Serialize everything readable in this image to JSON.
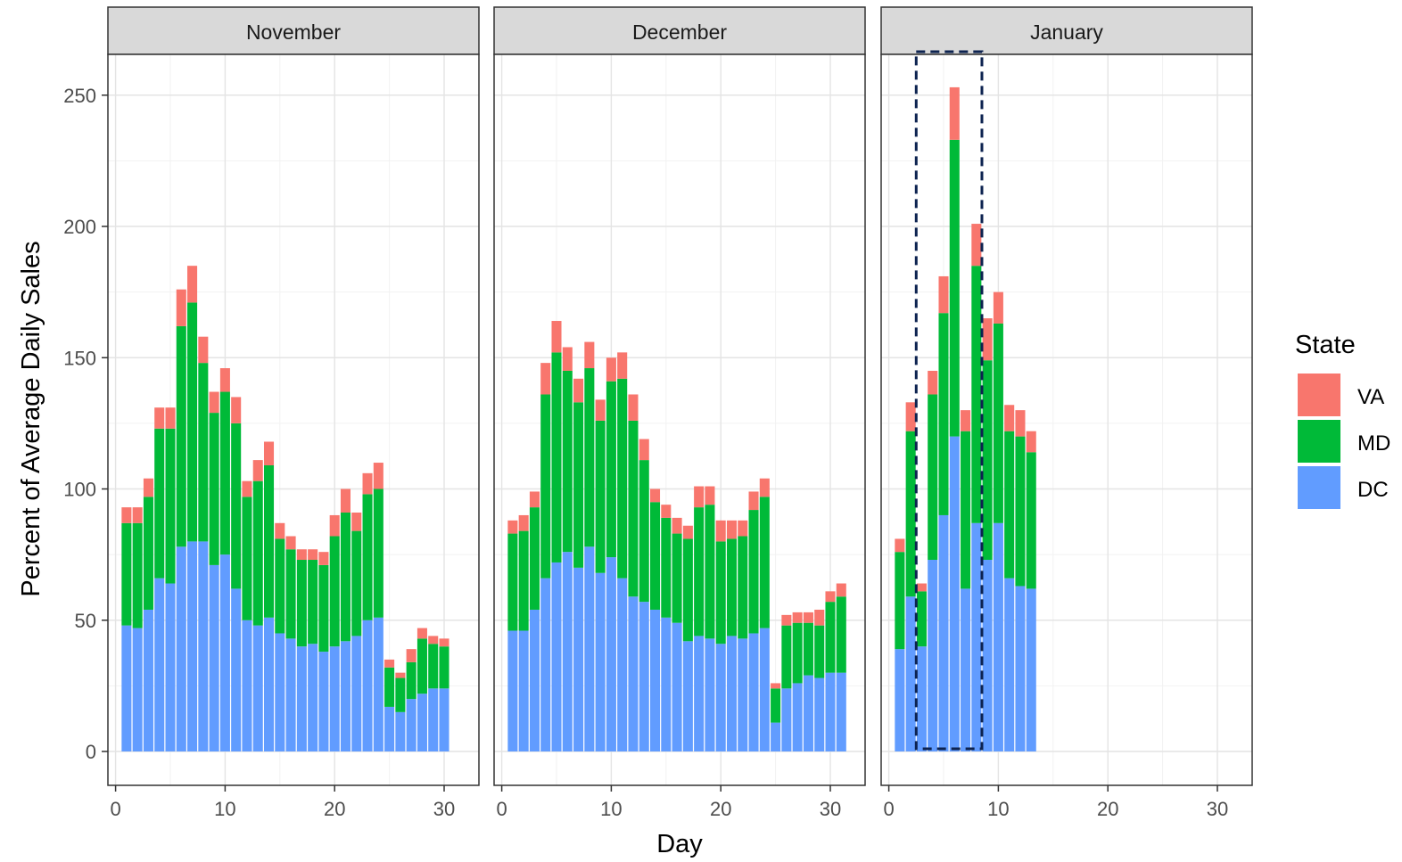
{
  "chart_data": {
    "type": "bar",
    "stacked": true,
    "xlabel": "Day",
    "ylabel": "Percent of Average Daily Sales",
    "xlim": [
      0,
      31
    ],
    "ylim": [
      0,
      260
    ],
    "xticks": [
      0,
      10,
      20,
      30
    ],
    "yticks": [
      0,
      50,
      100,
      150,
      200,
      250
    ],
    "grid": true,
    "legend": {
      "title": "State",
      "position": "right",
      "entries": [
        {
          "name": "VA",
          "color": "#F8766D"
        },
        {
          "name": "MD",
          "color": "#00BA38"
        },
        {
          "name": "DC",
          "color": "#619CFF"
        }
      ]
    },
    "highlight": {
      "panel": "January",
      "x_from": 2.5,
      "x_to": 8.5,
      "style": "dashed",
      "color": "#0d2350"
    },
    "panels": [
      {
        "title": "November",
        "days": [
          1,
          2,
          3,
          4,
          5,
          6,
          7,
          8,
          9,
          10,
          11,
          12,
          13,
          14,
          15,
          16,
          17,
          18,
          19,
          20,
          21,
          22,
          23,
          24,
          25,
          26,
          27,
          28,
          29,
          30
        ],
        "series": [
          {
            "name": "DC",
            "values": [
              48,
              47,
              54,
              66,
              64,
              78,
              80,
              80,
              71,
              75,
              62,
              50,
              48,
              51,
              45,
              43,
              40,
              41,
              38,
              40,
              42,
              44,
              50,
              51,
              17,
              15,
              20,
              22,
              24,
              24
            ]
          },
          {
            "name": "MD",
            "values": [
              39,
              40,
              43,
              57,
              59,
              84,
              91,
              68,
              58,
              62,
              63,
              47,
              55,
              58,
              36,
              34,
              33,
              32,
              33,
              42,
              49,
              40,
              48,
              49,
              15,
              13,
              14,
              21,
              17,
              16
            ]
          },
          {
            "name": "VA",
            "values": [
              6,
              6,
              7,
              8,
              8,
              14,
              14,
              10,
              8,
              9,
              10,
              6,
              8,
              9,
              6,
              5,
              4,
              4,
              5,
              8,
              9,
              7,
              8,
              10,
              3,
              2,
              5,
              4,
              3,
              3
            ]
          }
        ]
      },
      {
        "title": "December",
        "days": [
          1,
          2,
          3,
          4,
          5,
          6,
          7,
          8,
          9,
          10,
          11,
          12,
          13,
          14,
          15,
          16,
          17,
          18,
          19,
          20,
          21,
          22,
          23,
          24,
          25,
          26,
          27,
          28,
          29,
          30,
          31
        ],
        "series": [
          {
            "name": "DC",
            "values": [
              46,
              46,
              54,
              66,
              72,
              76,
              70,
              78,
              68,
              74,
              66,
              59,
              57,
              54,
              51,
              49,
              42,
              44,
              43,
              41,
              44,
              43,
              45,
              47,
              11,
              24,
              26,
              29,
              28,
              30,
              30
            ]
          },
          {
            "name": "MD",
            "values": [
              37,
              38,
              39,
              70,
              80,
              69,
              63,
              68,
              58,
              67,
              76,
              67,
              54,
              41,
              38,
              34,
              39,
              49,
              51,
              39,
              37,
              39,
              47,
              50,
              13,
              24,
              23,
              20,
              20,
              27,
              29
            ]
          },
          {
            "name": "VA",
            "values": [
              5,
              6,
              6,
              12,
              12,
              9,
              9,
              10,
              8,
              9,
              10,
              10,
              8,
              5,
              5,
              6,
              5,
              8,
              7,
              8,
              7,
              6,
              7,
              7,
              2,
              4,
              4,
              4,
              6,
              4,
              5
            ]
          }
        ]
      },
      {
        "title": "January",
        "days": [
          1,
          2,
          3,
          4,
          5,
          6,
          7,
          8,
          9,
          10,
          11,
          12,
          13
        ],
        "series": [
          {
            "name": "DC",
            "values": [
              39,
              59,
              40,
              73,
              90,
              120,
              62,
              87,
              73,
              87,
              66,
              63,
              62
            ]
          },
          {
            "name": "MD",
            "values": [
              37,
              63,
              21,
              63,
              77,
              113,
              60,
              98,
              76,
              76,
              56,
              57,
              52
            ]
          },
          {
            "name": "VA",
            "values": [
              5,
              11,
              3,
              9,
              14,
              20,
              8,
              16,
              16,
              12,
              10,
              10,
              8
            ]
          }
        ]
      }
    ]
  }
}
